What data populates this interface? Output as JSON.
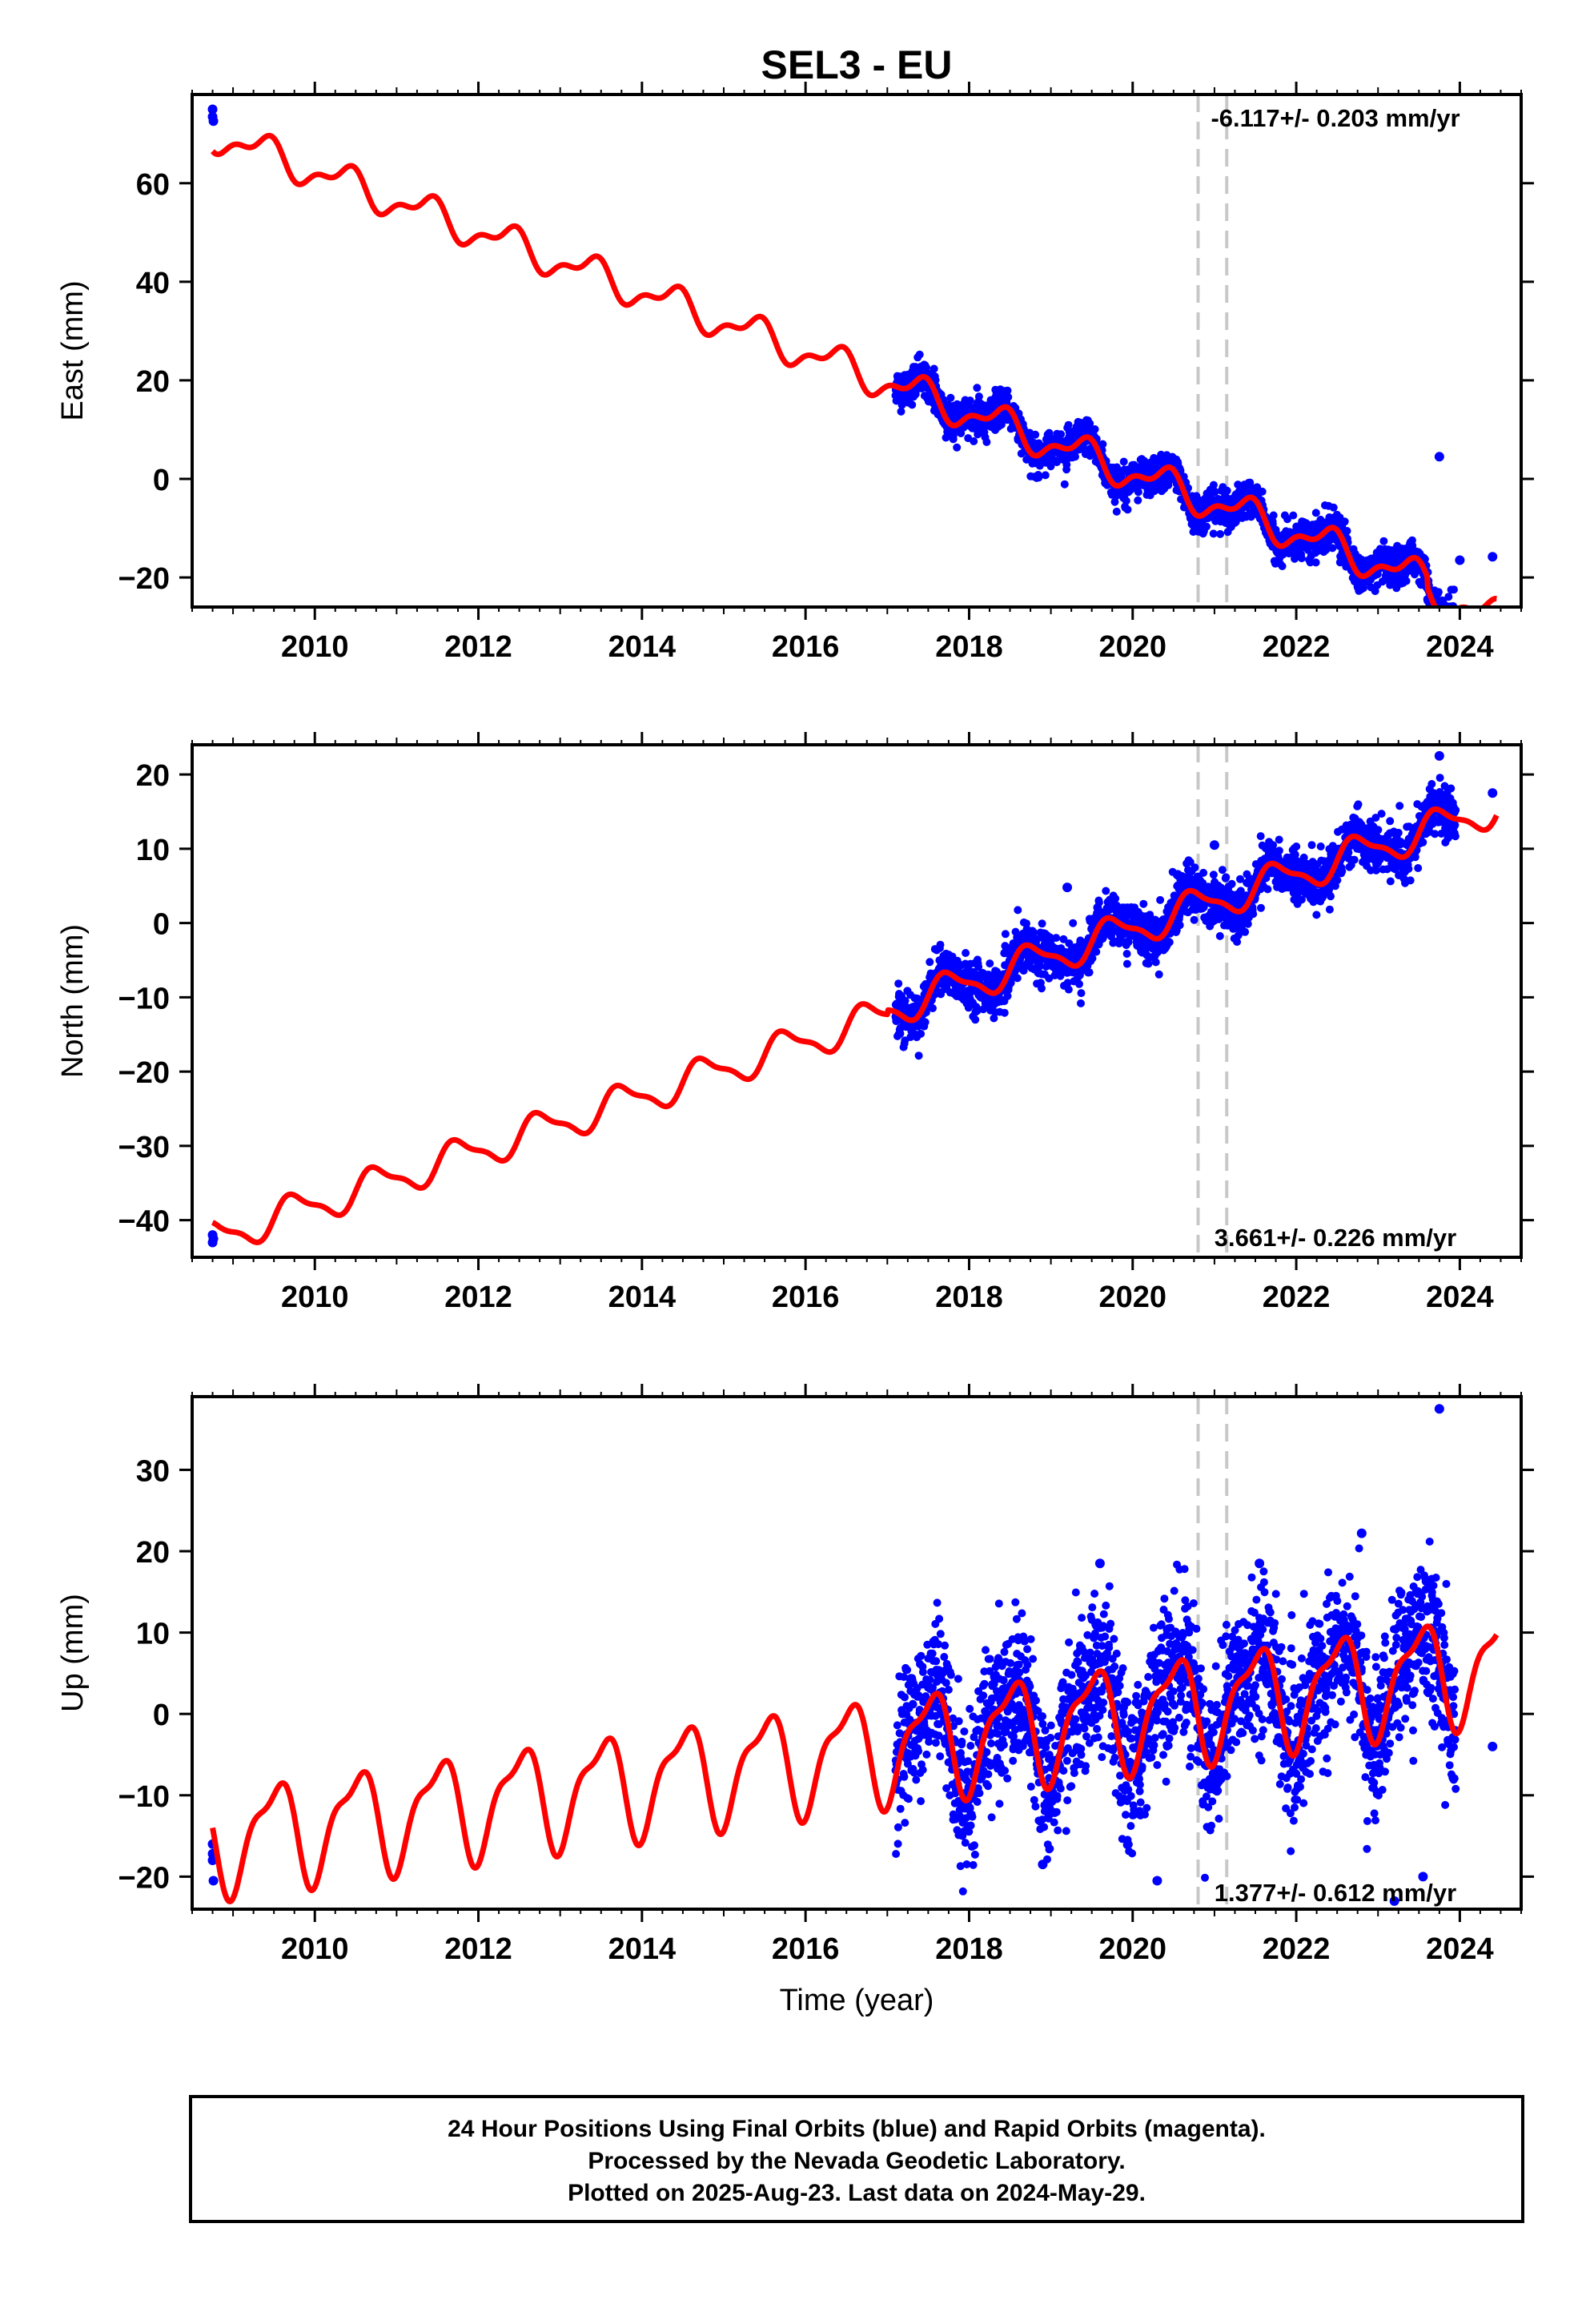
{
  "title": "SEL3 - EU",
  "colors": {
    "final": "#0000ff",
    "model": "#ff0000",
    "marker": "#c8c8c8"
  },
  "time_axis_label": "Time (year)",
  "footer": {
    "line1": "24 Hour Positions Using Final Orbits (blue) and Rapid Orbits (magenta).",
    "line2": "Processed by the Nevada Geodetic Laboratory.",
    "line3": "Plotted on 2025-Aug-23. Last data on 2024-May-29."
  },
  "chart_data": [
    {
      "type": "scatter",
      "component": "east",
      "ylabel": "East (mm)",
      "rate_label": "-6.117+/- 0.203 mm/yr",
      "xlim": [
        2008.5,
        2024.75
      ],
      "ylim": [
        -26,
        78
      ],
      "xticks": [
        2010,
        2012,
        2014,
        2016,
        2018,
        2020,
        2022,
        2024
      ],
      "yticks": [
        -20,
        0,
        20,
        40,
        60
      ],
      "equipment_changes": [
        2020.8,
        2021.15
      ],
      "model": {
        "start": 2008.75,
        "end": 2024.45,
        "ref_time": 2008.75,
        "offset": 70,
        "rate": -6.117,
        "annual_cos": -2.2,
        "annual_sin": 2.0,
        "semiannual_cos": 1.5,
        "semiannual_sin": 0.0,
        "offsets": [
          {
            "year": 2023.6,
            "value": -2.2
          }
        ]
      },
      "observations": {
        "start": 2017.1,
        "end": 2024.2,
        "noise_mm": 1.8,
        "gap": [
          2023.95,
          2024.3
        ]
      },
      "early_points": [
        [
          2008.75,
          75.0
        ],
        [
          2008.75,
          73.5
        ],
        [
          2008.76,
          72.6
        ]
      ],
      "outliers": [
        [
          2023.75,
          4.5
        ],
        [
          2024.4,
          -15.8
        ],
        [
          2024.0,
          -16.5
        ]
      ]
    },
    {
      "type": "scatter",
      "component": "north",
      "ylabel": "North (mm)",
      "rate_label": "3.661+/- 0.226 mm/yr",
      "xlim": [
        2008.5,
        2024.75
      ],
      "ylim": [
        -45,
        24
      ],
      "xticks": [
        2010,
        2012,
        2014,
        2016,
        2018,
        2020,
        2022,
        2024
      ],
      "yticks": [
        -40,
        -30,
        -20,
        -10,
        0,
        10,
        20
      ],
      "equipment_changes": [
        2020.8,
        2021.15
      ],
      "model": {
        "start": 2008.75,
        "end": 2024.45,
        "ref_time": 2008.75,
        "offset": -42.5,
        "rate": 3.661,
        "annual_cos": 0.0,
        "annual_sin": -2.2,
        "semiannual_cos": 0.0,
        "semiannual_sin": 0.7,
        "offsets": [
          {
            "year": 2017.0,
            "value": 0.6
          }
        ]
      },
      "observations": {
        "start": 2017.1,
        "end": 2024.2,
        "noise_mm": 1.6,
        "gap": [
          2023.95,
          2024.3
        ]
      },
      "early_points": [
        [
          2008.75,
          -42.0
        ],
        [
          2008.75,
          -43.0
        ],
        [
          2008.76,
          -42.5
        ]
      ],
      "outliers": [
        [
          2023.75,
          22.5
        ],
        [
          2020.55,
          6.5
        ],
        [
          2019.2,
          4.8
        ],
        [
          2024.4,
          17.5
        ],
        [
          2021.0,
          10.5
        ]
      ]
    },
    {
      "type": "scatter",
      "component": "up",
      "ylabel": "Up (mm)",
      "rate_label": "1.377+/- 0.612 mm/yr",
      "xlim": [
        2008.5,
        2024.75
      ],
      "ylim": [
        -24,
        39
      ],
      "xticks": [
        2010,
        2012,
        2014,
        2016,
        2018,
        2020,
        2022,
        2024
      ],
      "yticks": [
        -20,
        -10,
        0,
        10,
        20,
        30
      ],
      "equipment_changes": [
        2020.8,
        2021.15
      ],
      "model": {
        "start": 2008.75,
        "end": 2024.45,
        "ref_time": 2008.75,
        "offset": -15.5,
        "rate": 1.377,
        "annual_cos": -6.0,
        "annual_sin": 0.0,
        "semiannual_cos": -1.5,
        "semiannual_sin": 1.5,
        "offsets": []
      },
      "observations": {
        "start": 2017.1,
        "end": 2024.2,
        "noise_mm": 4.5,
        "gap": [
          2023.95,
          2024.3
        ]
      },
      "early_points": [
        [
          2008.75,
          -16.0
        ],
        [
          2008.75,
          -18.0
        ],
        [
          2008.76,
          -20.5
        ],
        [
          2008.75,
          -17.2
        ]
      ],
      "outliers": [
        [
          2023.75,
          37.5
        ],
        [
          2022.8,
          22.2
        ],
        [
          2021.55,
          18.5
        ],
        [
          2019.6,
          18.5
        ],
        [
          2023.2,
          -23.0
        ],
        [
          2024.4,
          -4.0
        ],
        [
          2020.3,
          -20.5
        ],
        [
          2018.9,
          -18.5
        ],
        [
          2023.55,
          -20.0
        ]
      ]
    }
  ]
}
